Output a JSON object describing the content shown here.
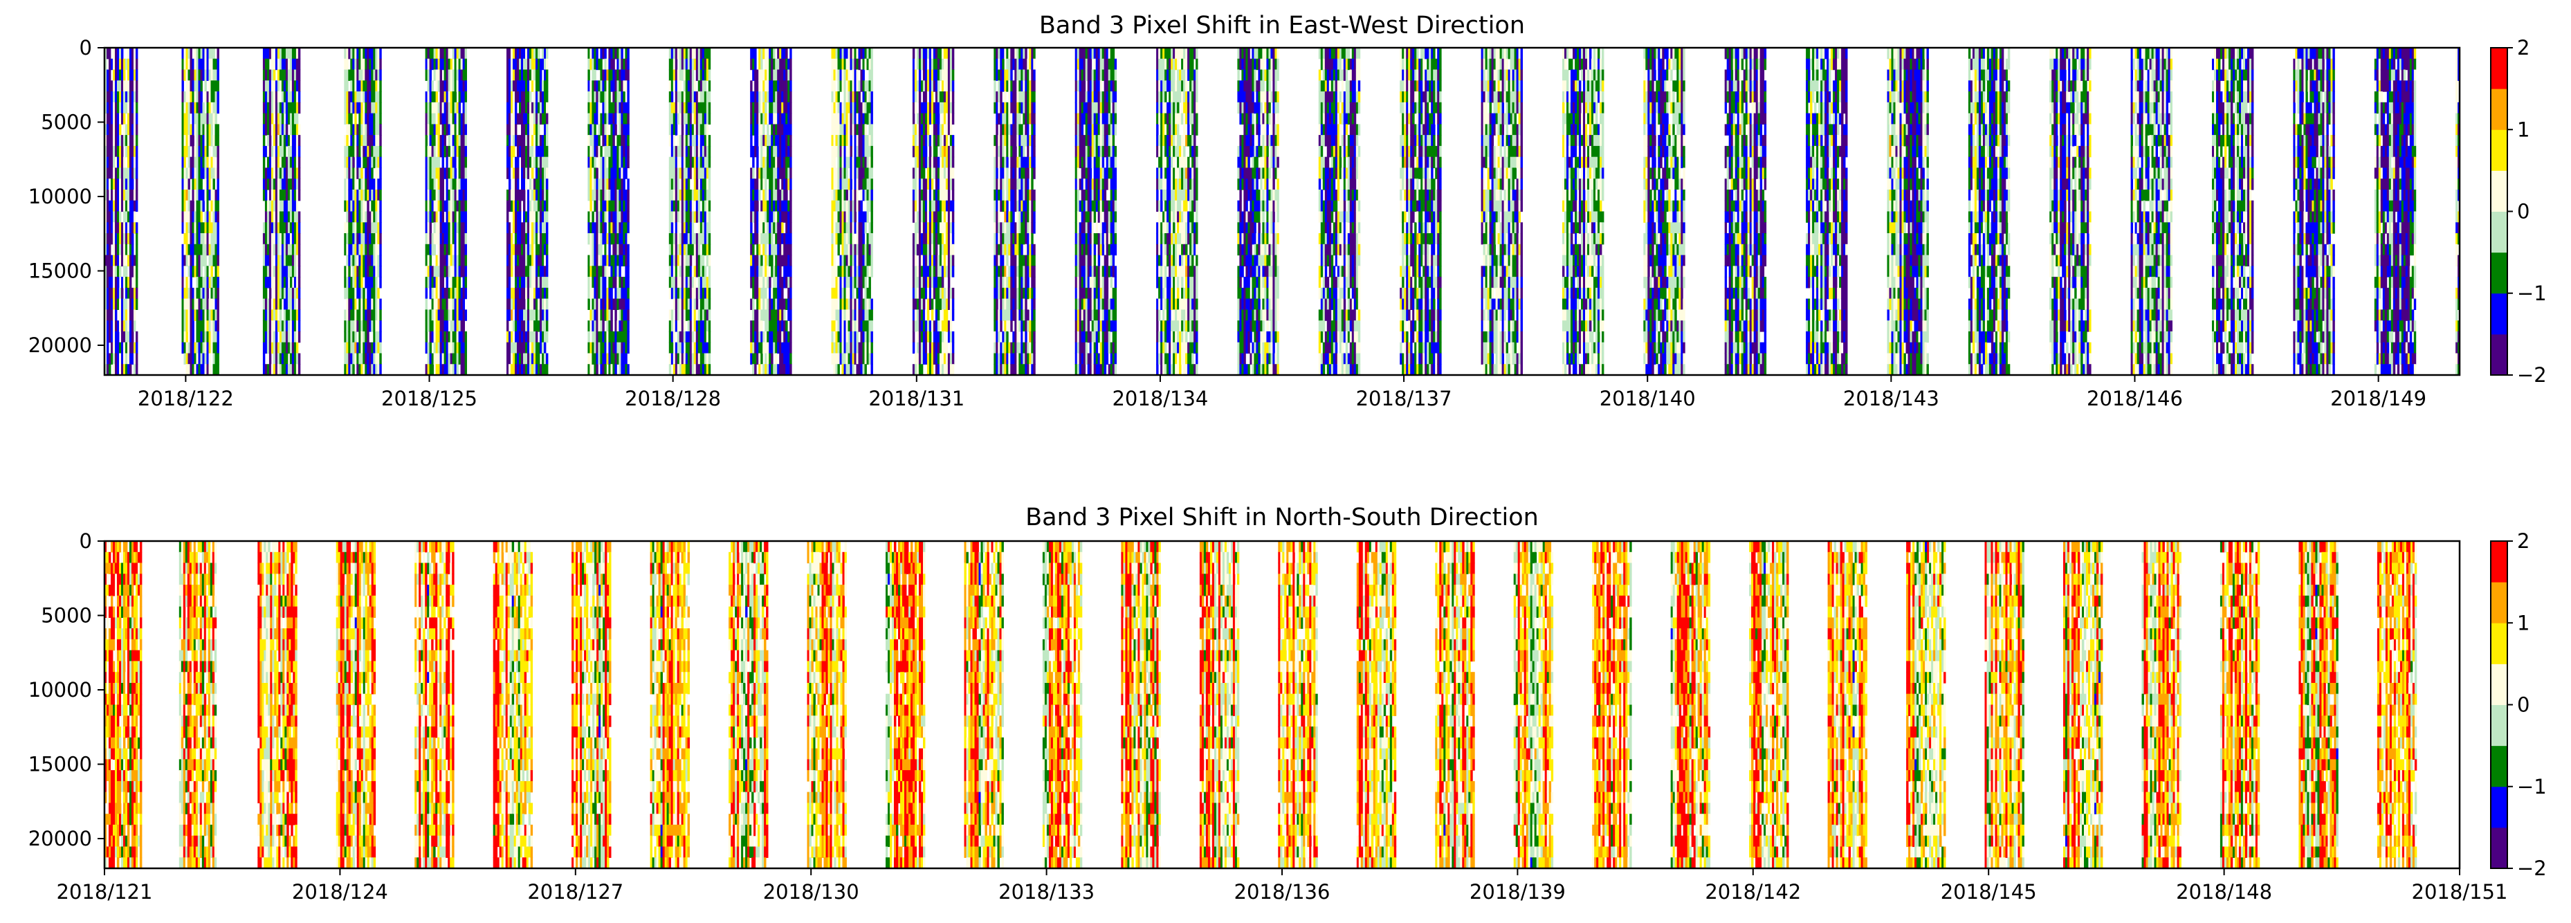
{
  "chart_data": [
    {
      "type": "heatmap",
      "title": "Band 3 Pixel Shift in East-West Direction",
      "xlabel": "",
      "ylabel": "",
      "x_ticks": [
        "2018/122",
        "2018/125",
        "2018/128",
        "2018/131",
        "2018/134",
        "2018/137",
        "2018/140",
        "2018/143",
        "2018/146",
        "2018/149"
      ],
      "x_tick_days": [
        122,
        125,
        128,
        131,
        134,
        137,
        140,
        143,
        146,
        149
      ],
      "xlim_days": [
        121,
        150
      ],
      "y_ticks": [
        "0",
        "5000",
        "10000",
        "15000",
        "20000"
      ],
      "y_tick_values": [
        0,
        5000,
        10000,
        15000,
        20000
      ],
      "ylim": [
        0,
        22000
      ],
      "y_inverted": true,
      "colorbar": {
        "ticks": [
          "2",
          "1",
          "0",
          "−1",
          "−2"
        ],
        "range": [
          -2,
          2
        ],
        "bin_edges": [
          -2,
          -1.5,
          -1,
          -0.5,
          0,
          0.5,
          1,
          1.5,
          2
        ],
        "colors": [
          "#4b0082",
          "#0000ff",
          "#008000",
          "#c0e8c4",
          "#fffce0",
          "#ffee00",
          "#ffa500",
          "#ff0000"
        ]
      },
      "daily_data_bands": [
        {
          "day": 121,
          "from": 121.0,
          "to": 121.4
        },
        {
          "day": 122,
          "from": 121.95,
          "to": 122.4
        },
        {
          "day": 123,
          "from": 122.95,
          "to": 123.4
        },
        {
          "day": 124,
          "from": 123.95,
          "to": 124.4
        },
        {
          "day": 125,
          "from": 124.95,
          "to": 125.45
        },
        {
          "day": 126,
          "from": 125.95,
          "to": 126.45
        },
        {
          "day": 127,
          "from": 126.95,
          "to": 127.45
        },
        {
          "day": 128,
          "from": 127.95,
          "to": 128.45
        },
        {
          "day": 129,
          "from": 128.95,
          "to": 129.45
        },
        {
          "day": 130,
          "from": 129.95,
          "to": 130.45
        },
        {
          "day": 131,
          "from": 130.95,
          "to": 131.45
        },
        {
          "day": 132,
          "from": 131.95,
          "to": 132.45
        },
        {
          "day": 133,
          "from": 132.95,
          "to": 133.45
        },
        {
          "day": 134,
          "from": 133.95,
          "to": 134.45
        },
        {
          "day": 135,
          "from": 134.95,
          "to": 135.45
        },
        {
          "day": 136,
          "from": 135.95,
          "to": 136.45
        },
        {
          "day": 137,
          "from": 136.95,
          "to": 137.45
        },
        {
          "day": 138,
          "from": 137.95,
          "to": 138.45
        },
        {
          "day": 139,
          "from": 138.95,
          "to": 139.45
        },
        {
          "day": 140,
          "from": 139.95,
          "to": 140.45
        },
        {
          "day": 141,
          "from": 140.95,
          "to": 141.45
        },
        {
          "day": 142,
          "from": 141.95,
          "to": 142.45
        },
        {
          "day": 143,
          "from": 142.95,
          "to": 143.45
        },
        {
          "day": 144,
          "from": 143.95,
          "to": 144.45
        },
        {
          "day": 145,
          "from": 144.95,
          "to": 145.45
        },
        {
          "day": 146,
          "from": 145.95,
          "to": 146.45
        },
        {
          "day": 147,
          "from": 146.95,
          "to": 147.45
        },
        {
          "day": 148,
          "from": 147.95,
          "to": 148.45
        },
        {
          "day": 149,
          "from": 148.95,
          "to": 149.45
        },
        {
          "day": 150,
          "from": 149.95,
          "to": 150.0
        }
      ],
      "dominant_value_range": [
        -2,
        0.5
      ]
    },
    {
      "type": "heatmap",
      "title": "Band 3 Pixel Shift in North-South Direction",
      "xlabel": "",
      "ylabel": "",
      "x_ticks": [
        "2018/121",
        "2018/124",
        "2018/127",
        "2018/130",
        "2018/133",
        "2018/136",
        "2018/139",
        "2018/142",
        "2018/145",
        "2018/148",
        "2018/151"
      ],
      "x_tick_days": [
        121,
        124,
        127,
        130,
        133,
        136,
        139,
        142,
        145,
        148,
        151
      ],
      "xlim_days": [
        121,
        151
      ],
      "y_ticks": [
        "0",
        "5000",
        "10000",
        "15000",
        "20000"
      ],
      "y_tick_values": [
        0,
        5000,
        10000,
        15000,
        20000
      ],
      "ylim": [
        0,
        22000
      ],
      "y_inverted": true,
      "colorbar": {
        "ticks": [
          "2",
          "1",
          "0",
          "−1",
          "−2"
        ],
        "range": [
          -2,
          2
        ],
        "bin_edges": [
          -2,
          -1.5,
          -1,
          -0.5,
          0,
          0.5,
          1,
          1.5,
          2
        ],
        "colors": [
          "#4b0082",
          "#0000ff",
          "#008000",
          "#c0e8c4",
          "#fffce0",
          "#ffee00",
          "#ffa500",
          "#ff0000"
        ]
      },
      "daily_data_bands": [
        {
          "day": 121,
          "from": 121.0,
          "to": 121.45
        },
        {
          "day": 122,
          "from": 121.95,
          "to": 122.4
        },
        {
          "day": 123,
          "from": 122.95,
          "to": 123.45
        },
        {
          "day": 124,
          "from": 123.95,
          "to": 124.45
        },
        {
          "day": 125,
          "from": 124.95,
          "to": 125.45
        },
        {
          "day": 126,
          "from": 125.95,
          "to": 126.45
        },
        {
          "day": 127,
          "from": 126.95,
          "to": 127.45
        },
        {
          "day": 128,
          "from": 127.95,
          "to": 128.45
        },
        {
          "day": 129,
          "from": 128.95,
          "to": 129.45
        },
        {
          "day": 130,
          "from": 129.95,
          "to": 130.45
        },
        {
          "day": 131,
          "from": 130.95,
          "to": 131.45
        },
        {
          "day": 132,
          "from": 131.95,
          "to": 132.45
        },
        {
          "day": 133,
          "from": 132.95,
          "to": 133.45
        },
        {
          "day": 134,
          "from": 133.95,
          "to": 134.45
        },
        {
          "day": 135,
          "from": 134.95,
          "to": 135.45
        },
        {
          "day": 136,
          "from": 135.95,
          "to": 136.45
        },
        {
          "day": 137,
          "from": 136.95,
          "to": 137.45
        },
        {
          "day": 138,
          "from": 137.95,
          "to": 138.45
        },
        {
          "day": 139,
          "from": 138.95,
          "to": 139.45
        },
        {
          "day": 140,
          "from": 139.95,
          "to": 140.45
        },
        {
          "day": 141,
          "from": 140.95,
          "to": 141.45
        },
        {
          "day": 142,
          "from": 141.95,
          "to": 142.45
        },
        {
          "day": 143,
          "from": 142.95,
          "to": 143.45
        },
        {
          "day": 144,
          "from": 143.95,
          "to": 144.45
        },
        {
          "day": 145,
          "from": 144.95,
          "to": 145.45
        },
        {
          "day": 146,
          "from": 145.95,
          "to": 146.45
        },
        {
          "day": 147,
          "from": 146.95,
          "to": 147.45
        },
        {
          "day": 148,
          "from": 147.95,
          "to": 148.45
        },
        {
          "day": 149,
          "from": 148.95,
          "to": 149.45
        },
        {
          "day": 150,
          "from": 149.95,
          "to": 150.45
        }
      ],
      "dominant_value_range": [
        -0.5,
        2
      ]
    }
  ]
}
